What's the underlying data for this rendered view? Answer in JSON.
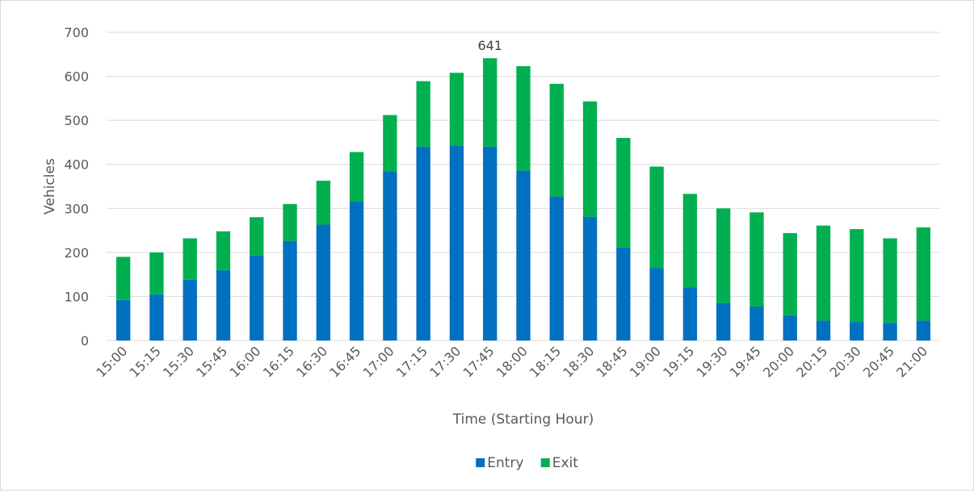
{
  "chart_data": {
    "type": "bar",
    "stacked": true,
    "title": "",
    "xlabel": "Time (Starting Hour)",
    "ylabel": "Vehicles",
    "ylim": [
      0,
      700
    ],
    "yticks": [
      0,
      100,
      200,
      300,
      400,
      500,
      600,
      700
    ],
    "grid": true,
    "legend_position": "bottom",
    "categories": [
      "15:00",
      "15:15",
      "15:30",
      "15:45",
      "16:00",
      "16:15",
      "16:30",
      "16:45",
      "17:00",
      "17:15",
      "17:30",
      "17:45",
      "18:00",
      "18:15",
      "18:30",
      "18:45",
      "19:00",
      "19:15",
      "19:30",
      "19:45",
      "20:00",
      "20:15",
      "20:30",
      "20:45",
      "21:00"
    ],
    "series": [
      {
        "name": "Entry",
        "color": "#0070c0",
        "values": [
          92,
          105,
          138,
          160,
          193,
          226,
          263,
          316,
          384,
          440,
          443,
          440,
          386,
          327,
          281,
          212,
          164,
          120,
          85,
          77,
          57,
          45,
          42,
          40,
          45
        ]
      },
      {
        "name": "Exit",
        "color": "#00b050",
        "values": [
          98,
          95,
          94,
          88,
          87,
          84,
          100,
          112,
          128,
          149,
          165,
          201,
          237,
          256,
          262,
          248,
          231,
          213,
          215,
          214,
          187,
          216,
          211,
          192,
          212
        ]
      }
    ],
    "annotations": [
      {
        "category": "17:45",
        "text": "641"
      }
    ]
  }
}
